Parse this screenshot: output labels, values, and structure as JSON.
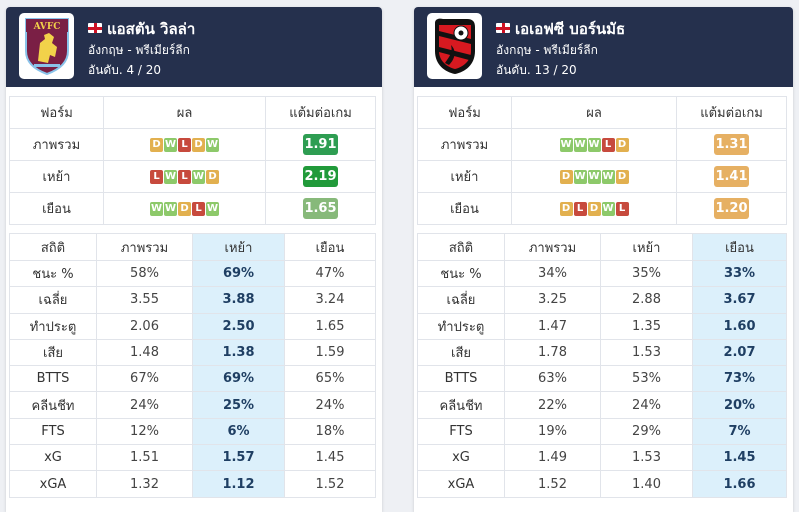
{
  "form_headers": [
    "ฟอร์ม",
    "ผล",
    "แต้มต่อเกม"
  ],
  "stats_headers": [
    "สถิติ",
    "ภาพรวม",
    "เหย้า",
    "เยือน"
  ],
  "left": {
    "team_name": "แอสตัน วิลล่า",
    "league": "อังกฤษ - พรีเมียร์ลีก",
    "rank": "อันดับ. 4 / 20",
    "logo_text": "AVFC",
    "form": [
      {
        "label": "ภาพรวม",
        "results": [
          "D",
          "W",
          "L",
          "D",
          "W"
        ],
        "ppg": "1.91"
      },
      {
        "label": "เหย้า",
        "results": [
          "L",
          "W",
          "L",
          "W",
          "D"
        ],
        "ppg": "2.19"
      },
      {
        "label": "เยือน",
        "results": [
          "W",
          "W",
          "D",
          "L",
          "W"
        ],
        "ppg": "1.65"
      }
    ],
    "highlight": "home",
    "stats": [
      {
        "label": "ชนะ %",
        "overall": "58%",
        "home": "69%",
        "away": "47%"
      },
      {
        "label": "เฉลี่ย",
        "overall": "3.55",
        "home": "3.88",
        "away": "3.24"
      },
      {
        "label": "ทำประตู",
        "overall": "2.06",
        "home": "2.50",
        "away": "1.65"
      },
      {
        "label": "เสีย",
        "overall": "1.48",
        "home": "1.38",
        "away": "1.59"
      },
      {
        "label": "BTTS",
        "overall": "67%",
        "home": "69%",
        "away": "65%"
      },
      {
        "label": "คลีนชีท",
        "overall": "24%",
        "home": "25%",
        "away": "24%"
      },
      {
        "label": "FTS",
        "overall": "12%",
        "home": "6%",
        "away": "18%"
      },
      {
        "label": "xG",
        "overall": "1.51",
        "home": "1.57",
        "away": "1.45"
      },
      {
        "label": "xGA",
        "overall": "1.32",
        "home": "1.12",
        "away": "1.52"
      }
    ]
  },
  "right": {
    "team_name": "เอเอฟซี บอร์นมัธ",
    "league": "อังกฤษ - พรีเมียร์ลีก",
    "rank": "อันดับ. 13 / 20",
    "logo_text": "AFC BOURNEMOUTH",
    "form": [
      {
        "label": "ภาพรวม",
        "results": [
          "W",
          "W",
          "W",
          "L",
          "D"
        ],
        "ppg": "1.31"
      },
      {
        "label": "เหย้า",
        "results": [
          "D",
          "W",
          "W",
          "W",
          "D"
        ],
        "ppg": "1.41"
      },
      {
        "label": "เยือน",
        "results": [
          "D",
          "L",
          "D",
          "W",
          "L"
        ],
        "ppg": "1.20"
      }
    ],
    "highlight": "away",
    "stats": [
      {
        "label": "ชนะ %",
        "overall": "34%",
        "home": "35%",
        "away": "33%"
      },
      {
        "label": "เฉลี่ย",
        "overall": "3.25",
        "home": "2.88",
        "away": "3.67"
      },
      {
        "label": "ทำประตู",
        "overall": "1.47",
        "home": "1.35",
        "away": "1.60"
      },
      {
        "label": "เสีย",
        "overall": "1.78",
        "home": "1.53",
        "away": "2.07"
      },
      {
        "label": "BTTS",
        "overall": "63%",
        "home": "53%",
        "away": "73%"
      },
      {
        "label": "คลีนชีท",
        "overall": "22%",
        "home": "24%",
        "away": "20%"
      },
      {
        "label": "FTS",
        "overall": "19%",
        "home": "29%",
        "away": "7%"
      },
      {
        "label": "xG",
        "overall": "1.49",
        "home": "1.53",
        "away": "1.45"
      },
      {
        "label": "xGA",
        "overall": "1.52",
        "home": "1.40",
        "away": "1.66"
      }
    ]
  }
}
